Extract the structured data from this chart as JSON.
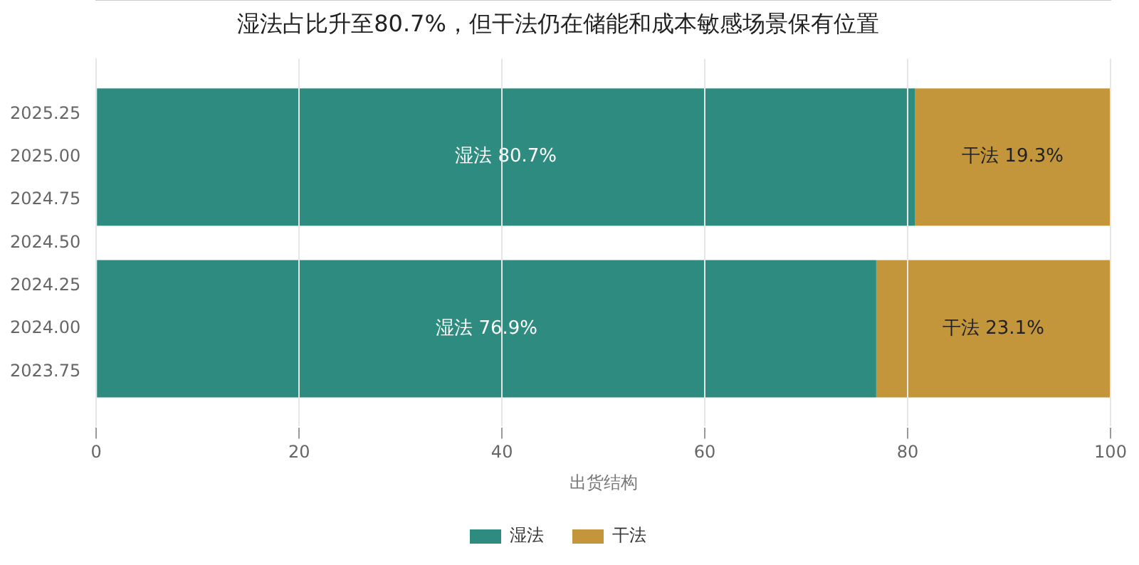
{
  "chart_data": {
    "type": "bar",
    "orientation": "horizontal",
    "stacked": true,
    "title": "湿法占比升至80.7%，但干法仍在储能和成本敏感场景保有位置",
    "xlabel": "出货结构",
    "x": [
      2024,
      2025
    ],
    "series": [
      {
        "name": "湿法",
        "color": "#2e8b7f",
        "values": [
          76.9,
          80.7
        ],
        "value_labels": [
          "湿法 76.9%",
          "湿法 80.7%"
        ]
      },
      {
        "name": "干法",
        "color": "#c4963c",
        "values": [
          23.1,
          19.3
        ],
        "value_labels": [
          "干法 23.1%",
          "干法 19.3%"
        ]
      }
    ],
    "xlim": [
      0,
      100
    ],
    "xticks": [
      0,
      20,
      40,
      60,
      80,
      100
    ],
    "ylim": [
      2023.58,
      2025.42
    ],
    "yticks": [
      2023.75,
      {
        "value": 2024,
        "label": "2024.00"
      },
      2024.25,
      {
        "value": 2024.5,
        "label": "2024.50"
      },
      2024.75,
      {
        "value": 2025,
        "label": "2025.00"
      },
      2025.25
    ],
    "grid": "x",
    "legend": "bottom"
  }
}
